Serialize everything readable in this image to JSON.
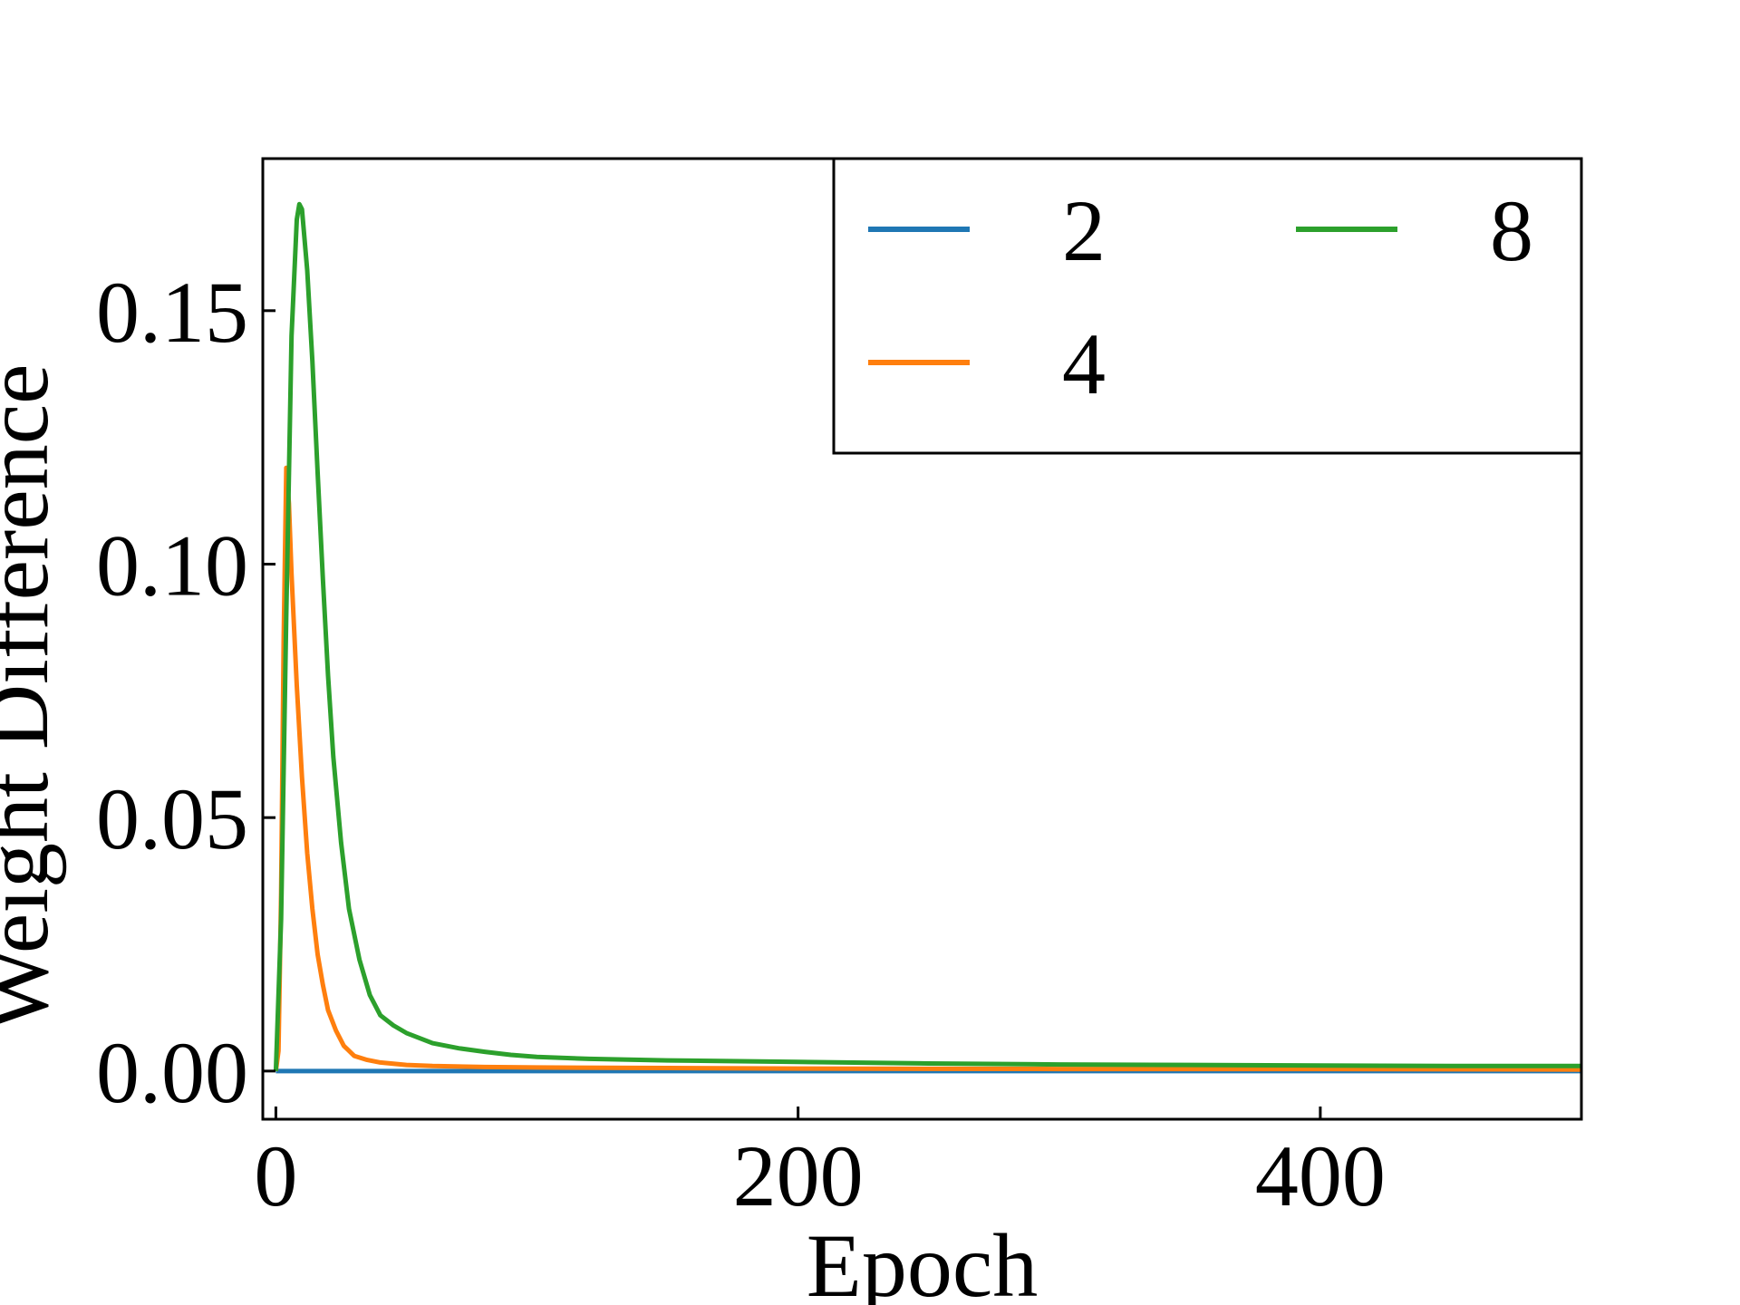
{
  "chart_data": {
    "type": "line",
    "xlabel": "Epoch",
    "ylabel": "Weight Difference",
    "xlim": [
      -5,
      500
    ],
    "ylim": [
      -0.0095,
      0.18
    ],
    "xticks": [
      0,
      200,
      400
    ],
    "xtick_labels": [
      "0",
      "200",
      "400"
    ],
    "yticks": [
      0.0,
      0.05,
      0.1,
      0.15
    ],
    "ytick_labels": [
      "0.00",
      "0.05",
      "0.10",
      "0.15"
    ],
    "grid": false,
    "legend": {
      "placement": "top-right",
      "columns": 2
    },
    "series": [
      {
        "name": "2",
        "color": "#1f77b4",
        "points": [
          [
            0,
            0.0
          ],
          [
            500,
            0.0
          ]
        ]
      },
      {
        "name": "4",
        "color": "#ff7f0e",
        "points": [
          [
            0,
            0.0
          ],
          [
            1,
            0.004
          ],
          [
            2,
            0.035
          ],
          [
            3,
            0.085
          ],
          [
            4,
            0.119
          ],
          [
            5,
            0.112
          ],
          [
            6,
            0.098
          ],
          [
            8,
            0.076
          ],
          [
            10,
            0.058
          ],
          [
            12,
            0.043
          ],
          [
            14,
            0.032
          ],
          [
            16,
            0.023
          ],
          [
            18,
            0.017
          ],
          [
            20,
            0.012
          ],
          [
            23,
            0.008
          ],
          [
            26,
            0.005
          ],
          [
            30,
            0.003
          ],
          [
            35,
            0.0022
          ],
          [
            40,
            0.0017
          ],
          [
            50,
            0.0012
          ],
          [
            60,
            0.001
          ],
          [
            80,
            0.0008
          ],
          [
            100,
            0.0007
          ],
          [
            150,
            0.0006
          ],
          [
            200,
            0.0005
          ],
          [
            300,
            0.0004
          ],
          [
            400,
            0.0004
          ],
          [
            500,
            0.0003
          ]
        ]
      },
      {
        "name": "8",
        "color": "#2ca02c",
        "points": [
          [
            0,
            0.0
          ],
          [
            2,
            0.03
          ],
          [
            4,
            0.09
          ],
          [
            6,
            0.145
          ],
          [
            8,
            0.168
          ],
          [
            9,
            0.171
          ],
          [
            10,
            0.17
          ],
          [
            12,
            0.158
          ],
          [
            14,
            0.14
          ],
          [
            16,
            0.118
          ],
          [
            18,
            0.097
          ],
          [
            20,
            0.078
          ],
          [
            22,
            0.062
          ],
          [
            25,
            0.045
          ],
          [
            28,
            0.032
          ],
          [
            32,
            0.022
          ],
          [
            36,
            0.015
          ],
          [
            40,
            0.011
          ],
          [
            45,
            0.009
          ],
          [
            50,
            0.0075
          ],
          [
            60,
            0.0055
          ],
          [
            70,
            0.0045
          ],
          [
            80,
            0.0038
          ],
          [
            90,
            0.0032
          ],
          [
            100,
            0.0028
          ],
          [
            120,
            0.0024
          ],
          [
            150,
            0.0021
          ],
          [
            200,
            0.0018
          ],
          [
            250,
            0.0015
          ],
          [
            300,
            0.0013
          ],
          [
            350,
            0.0012
          ],
          [
            400,
            0.0011
          ],
          [
            450,
            0.001
          ],
          [
            500,
            0.001
          ]
        ]
      }
    ]
  }
}
